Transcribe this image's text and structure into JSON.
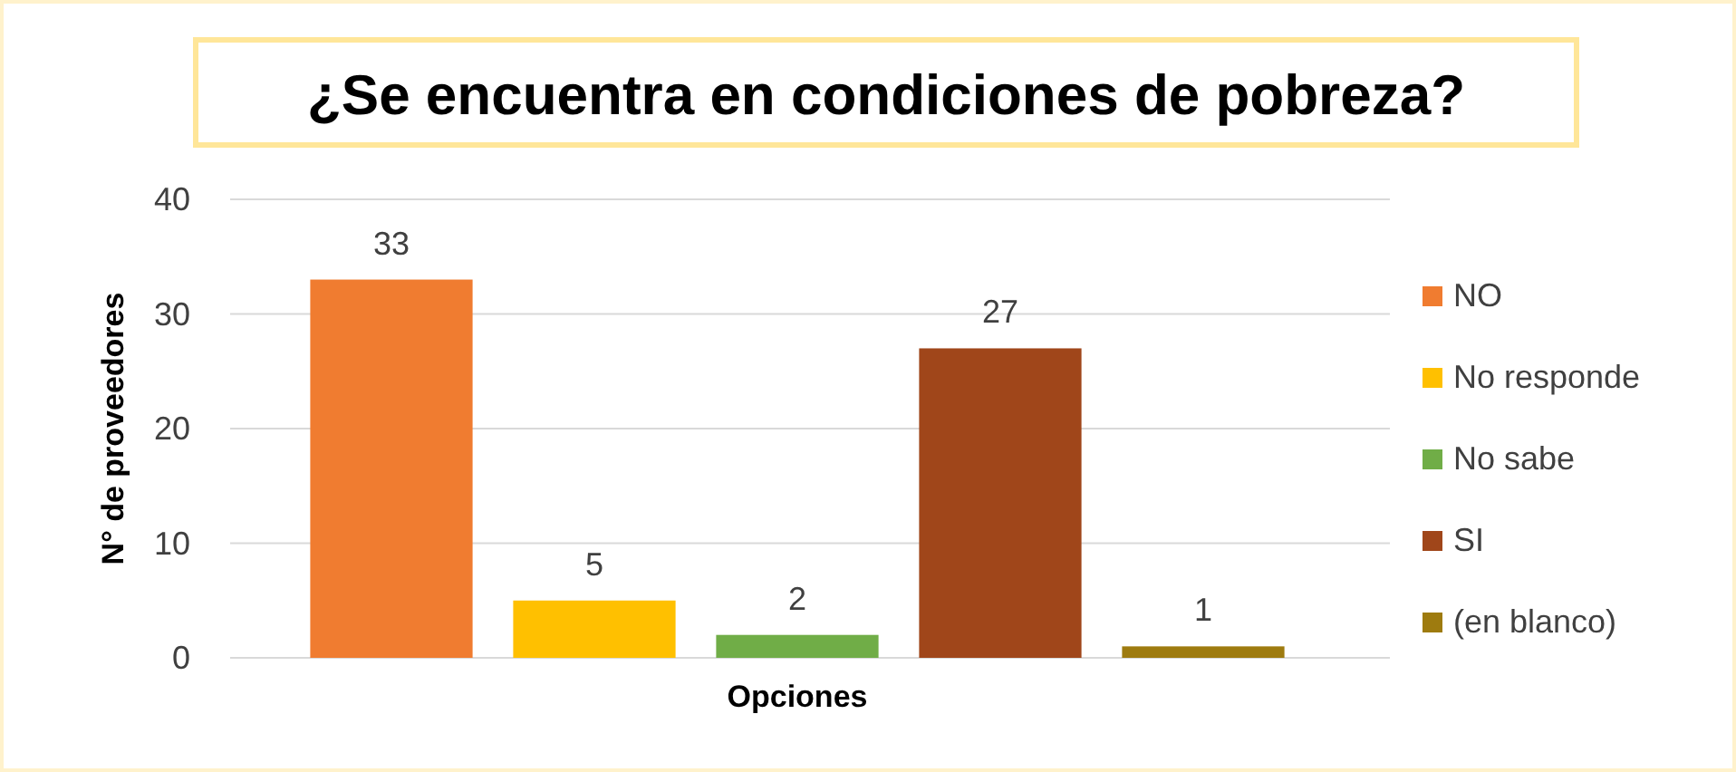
{
  "chart_data": {
    "type": "bar",
    "title": "¿Se encuentra en condiciones de pobreza?",
    "xlabel": "Opciones",
    "ylabel": "N° de proveedores",
    "categories": [
      null,
      null,
      null,
      null,
      null
    ],
    "series": [
      {
        "name": "NO",
        "color": "#f07c30",
        "values": [
          33,
          null,
          null,
          null,
          null
        ]
      },
      {
        "name": "No responde",
        "color": "#ffc000",
        "values": [
          null,
          5,
          null,
          null,
          null
        ]
      },
      {
        "name": "No sabe",
        "color": "#70ad47",
        "values": [
          null,
          null,
          2,
          null,
          null
        ]
      },
      {
        "name": "SI",
        "color": "#a0461a",
        "values": [
          null,
          null,
          null,
          27,
          null
        ]
      },
      {
        "name": "(en blanco)",
        "color": "#9e7b0f",
        "values": [
          null,
          null,
          null,
          null,
          1
        ]
      }
    ],
    "ylim": [
      0,
      40
    ],
    "yticks": [
      0,
      10,
      20,
      30,
      40
    ],
    "grid": "y",
    "legend": "right",
    "data_labels": true
  }
}
